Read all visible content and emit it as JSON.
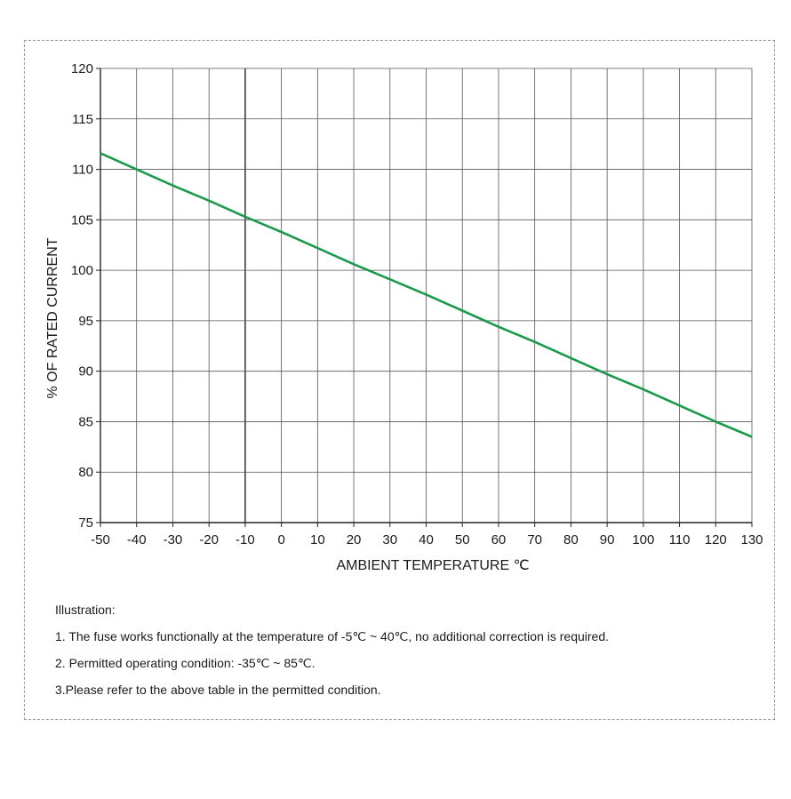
{
  "chart_data": {
    "type": "line",
    "title": "",
    "xlabel": "AMBIENT TEMPERATURE ℃",
    "ylabel": "% OF RATED CURRENT",
    "xlim": [
      -50,
      130
    ],
    "ylim": [
      75,
      120
    ],
    "x_ticks": [
      -50,
      -40,
      -30,
      -20,
      -10,
      0,
      10,
      20,
      30,
      40,
      50,
      60,
      70,
      80,
      90,
      100,
      110,
      120,
      130
    ],
    "y_ticks": [
      75,
      80,
      85,
      90,
      95,
      100,
      105,
      110,
      115,
      120
    ],
    "grid": true,
    "highlight_x": -10,
    "series": [
      {
        "color": "#1a9a4a",
        "x": [
          -50,
          -40,
          -30,
          -20,
          -10,
          0,
          10,
          20,
          30,
          40,
          50,
          60,
          70,
          80,
          90,
          100,
          110,
          120,
          130
        ],
        "y": [
          111.6,
          110.0,
          108.4,
          106.9,
          105.3,
          103.8,
          102.2,
          100.6,
          99.1,
          97.6,
          96.0,
          94.4,
          92.9,
          91.3,
          89.7,
          88.2,
          86.6,
          85.0,
          83.5
        ]
      }
    ]
  },
  "notes": {
    "heading": "Illustration:",
    "items": [
      "1. The fuse works functionally at the temperature of -5℃ ~ 40℃, no additional correction is required.",
      "2. Permitted operating condition: -35℃ ~ 85℃.",
      "3.Please refer to the above table in the permitted condition."
    ]
  }
}
